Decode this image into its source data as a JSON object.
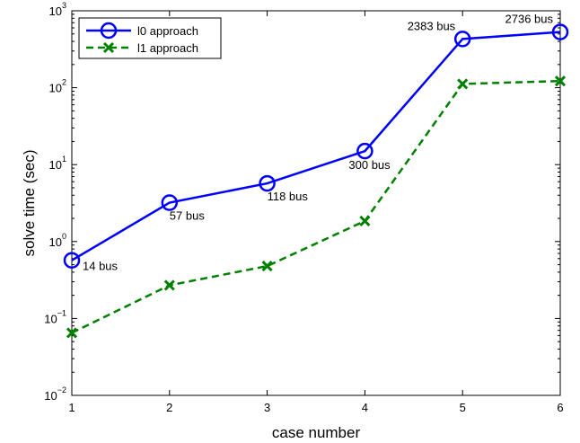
{
  "chart_data": {
    "type": "line",
    "xlabel": "case number",
    "ylabel": "solve time (sec)",
    "y_scale": "log",
    "x": [
      1,
      2,
      3,
      4,
      5,
      6
    ],
    "xlim": [
      1,
      6
    ],
    "ylim": [
      0.01,
      1000
    ],
    "x_ticks": [
      "1",
      "2",
      "3",
      "4",
      "5",
      "6"
    ],
    "y_ticks": [
      {
        "base": "10",
        "exp": "−2"
      },
      {
        "base": "10",
        "exp": "−1"
      },
      {
        "base": "10",
        "exp": "0"
      },
      {
        "base": "10",
        "exp": "1"
      },
      {
        "base": "10",
        "exp": "2"
      },
      {
        "base": "10",
        "exp": "3"
      }
    ],
    "grid": false,
    "legend_position": "top-left",
    "series": [
      {
        "name": "l0 approach",
        "color": "#0000ff",
        "line_style": "solid",
        "marker": "circle",
        "values": [
          0.57,
          3.2,
          5.7,
          15,
          430,
          530
        ]
      },
      {
        "name": "l1 approach",
        "color": "#008000",
        "line_style": "dashed",
        "marker": "x",
        "values": [
          0.065,
          0.27,
          0.48,
          1.85,
          112,
          122
        ]
      }
    ],
    "annotations": [
      {
        "text": "14 bus",
        "x": 1
      },
      {
        "text": "57 bus",
        "x": 2
      },
      {
        "text": "118 bus",
        "x": 3
      },
      {
        "text": "300 bus",
        "x": 4
      },
      {
        "text": "2383 bus",
        "x": 5
      },
      {
        "text": "2736 bus",
        "x": 6
      }
    ]
  }
}
